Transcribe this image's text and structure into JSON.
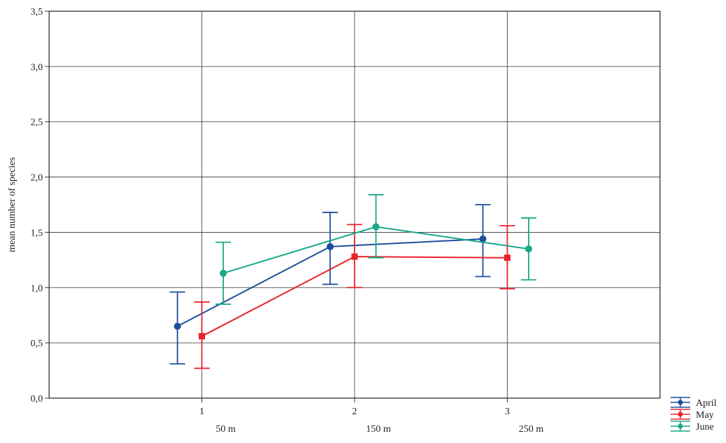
{
  "chart_data": {
    "type": "line",
    "title": "",
    "xlabel": "",
    "ylabel": "mean number of species",
    "x": [
      1,
      2,
      3
    ],
    "x_tick_labels": [
      "1",
      "2",
      "3"
    ],
    "x_sub_labels": [
      "50 m",
      "150 m",
      "250 m"
    ],
    "xlim": [
      0,
      4
    ],
    "ylim": [
      0,
      3.5
    ],
    "y_ticks": [
      0.0,
      0.5,
      1.0,
      1.5,
      2.0,
      2.5,
      3.0,
      3.5
    ],
    "y_tick_labels": [
      "0,0",
      "0,5",
      "1,0",
      "1,5",
      "2,0",
      "2,5",
      "3,0",
      "3,5"
    ],
    "grid": true,
    "legend_position": "bottom-right",
    "error_bars": true,
    "series": [
      {
        "name": "April",
        "color": "#1f4e9c",
        "marker": "circle",
        "values": [
          0.65,
          1.37,
          1.44
        ],
        "lower": [
          0.31,
          1.03,
          1.1
        ],
        "upper": [
          0.96,
          1.68,
          1.75
        ]
      },
      {
        "name": "May",
        "color": "#e8232a",
        "marker": "square",
        "values": [
          0.56,
          1.28,
          1.27
        ],
        "lower": [
          0.27,
          1.0,
          0.99
        ],
        "upper": [
          0.87,
          1.57,
          1.56
        ]
      },
      {
        "name": "June",
        "color": "#1aa88a",
        "marker": "circle",
        "values": [
          1.13,
          1.55,
          1.35
        ],
        "lower": [
          0.85,
          1.27,
          1.07
        ],
        "upper": [
          1.41,
          1.84,
          1.63
        ]
      }
    ]
  }
}
